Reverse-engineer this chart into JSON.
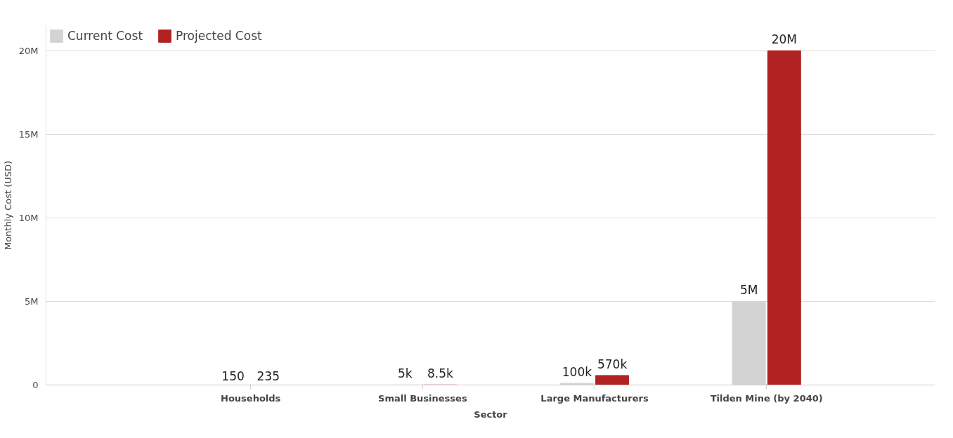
{
  "chart_data": {
    "type": "bar",
    "xlabel": "Sector",
    "ylabel": "Monthly Cost (USD)",
    "categories": [
      "Households",
      "Small Businesses",
      "Large Manufacturers",
      "Tilden Mine (by 2040)"
    ],
    "series": [
      {
        "name": "Current Cost",
        "color": "#d3d3d3",
        "values": [
          150,
          5000,
          100000,
          5000000
        ],
        "value_labels": [
          "150",
          "5k",
          "100k",
          "5M"
        ]
      },
      {
        "name": "Projected Cost",
        "color": "#b22222",
        "values": [
          235,
          8500,
          570000,
          20000000
        ],
        "value_labels": [
          "235",
          "8.5k",
          "570k",
          "20M"
        ]
      }
    ],
    "ylim": [
      0,
      21500000
    ],
    "yticks": [
      0,
      {
        "value": 5000000,
        "label": "5M"
      },
      {
        "value": 10000000,
        "label": "10M"
      },
      {
        "value": 15000000,
        "label": "15M"
      },
      {
        "value": 20000000,
        "label": "20M"
      }
    ],
    "grid": "y",
    "legend": "top left"
  }
}
